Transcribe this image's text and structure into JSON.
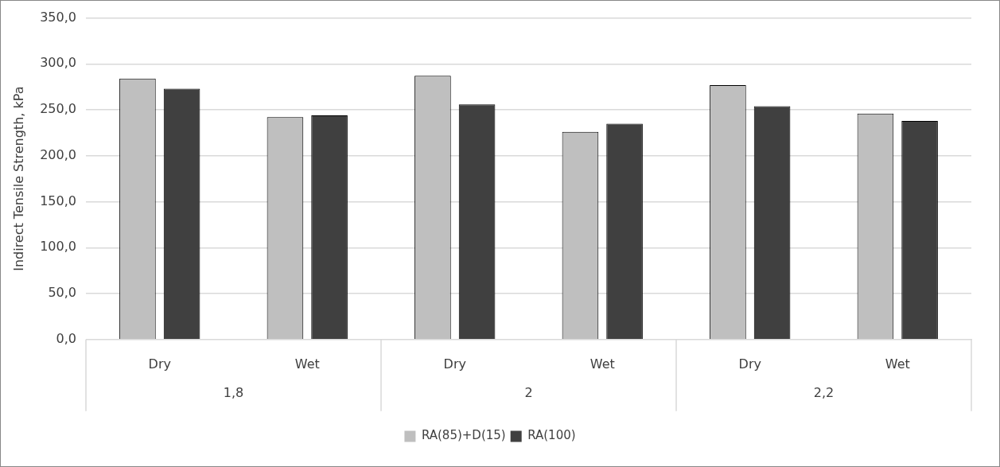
{
  "chart_data": {
    "type": "bar",
    "ylabel": "Indirect Tensile Strength, kPa",
    "categories": [
      "Dry",
      "Wet",
      "Dry",
      "Wet",
      "Dry",
      "Wet"
    ],
    "annotations": [
      "1,8",
      "2",
      "2,2"
    ],
    "series": [
      {
        "name": "RA(85)+D(15)",
        "color": "#bfbfbf",
        "values": [
          284,
          242,
          287,
          226,
          277,
          246
        ]
      },
      {
        "name": "RA(100)",
        "color": "#404040",
        "values": [
          273,
          244,
          256,
          235,
          254,
          238
        ]
      }
    ],
    "ylim": [
      0,
      350
    ],
    "yticks": [
      {
        "value": 0,
        "label": "0,0"
      },
      {
        "value": 50,
        "label": "50,0"
      },
      {
        "value": 100,
        "label": "100,0"
      },
      {
        "value": 150,
        "label": "150,0"
      },
      {
        "value": 200,
        "label": "200,0"
      },
      {
        "value": 250,
        "label": "250,0"
      },
      {
        "value": 300,
        "label": "300,0"
      },
      {
        "value": 350,
        "label": "350,0"
      }
    ],
    "grid": "y",
    "legend": "bottom"
  }
}
